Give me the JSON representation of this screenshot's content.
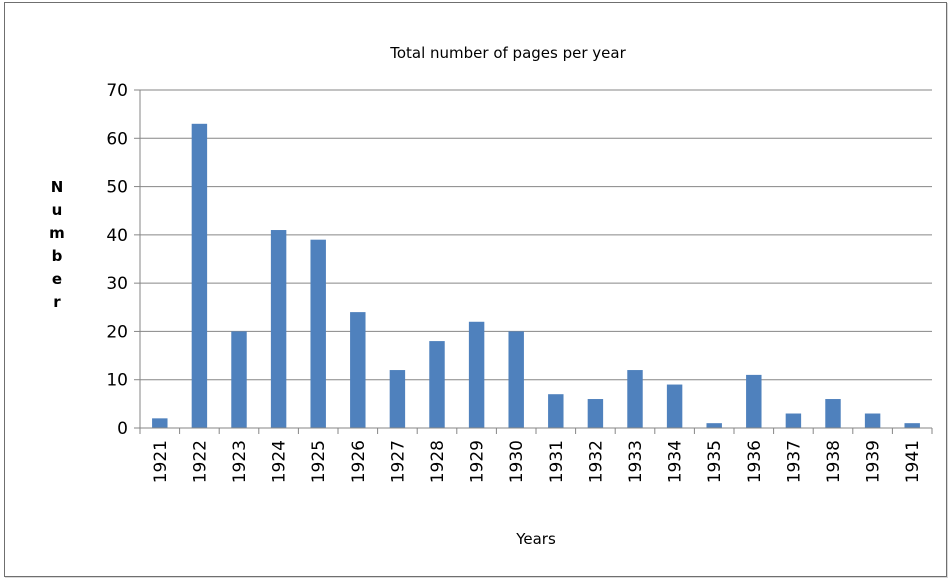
{
  "chart_data": {
    "type": "bar",
    "title": "Total number of pages per year",
    "xlabel": "Years",
    "ylabel": "Number",
    "ylim": [
      0,
      70
    ],
    "yticks": [
      0,
      10,
      20,
      30,
      40,
      50,
      60,
      70
    ],
    "grid": true,
    "legend": "none",
    "bar_color": "#4f81bd",
    "categories": [
      "1921",
      "1922",
      "1923",
      "1924",
      "1925",
      "1926",
      "1927",
      "1928",
      "1929",
      "1930",
      "1931",
      "1932",
      "1933",
      "1934",
      "1935",
      "1936",
      "1937",
      "1938",
      "1939",
      "1941"
    ],
    "values": [
      2,
      63,
      20,
      41,
      39,
      24,
      12,
      18,
      22,
      20,
      7,
      6,
      12,
      9,
      1,
      11,
      3,
      6,
      3,
      1
    ]
  }
}
